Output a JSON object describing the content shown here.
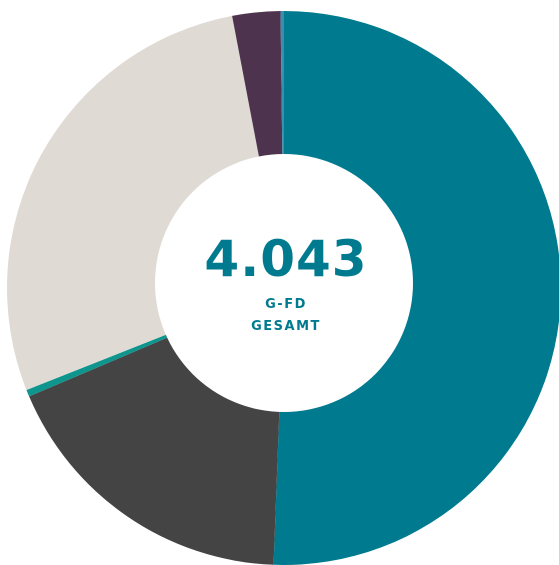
{
  "chart_data": {
    "type": "pie",
    "variant": "donut",
    "center": {
      "value": "4.043",
      "label_line1": "G-FD",
      "label_line2": "GESAMT"
    },
    "slices": [
      {
        "value": 50.6,
        "color": "#007a8f"
      },
      {
        "value": 18.0,
        "color": "#444444"
      },
      {
        "value": 0.4,
        "color": "#0e958e"
      },
      {
        "value": 28.0,
        "color": "#e0dad4"
      },
      {
        "value": 2.8,
        "color": "#4d334e"
      },
      {
        "value": 0.2,
        "color": "#3a8fb0"
      }
    ]
  }
}
